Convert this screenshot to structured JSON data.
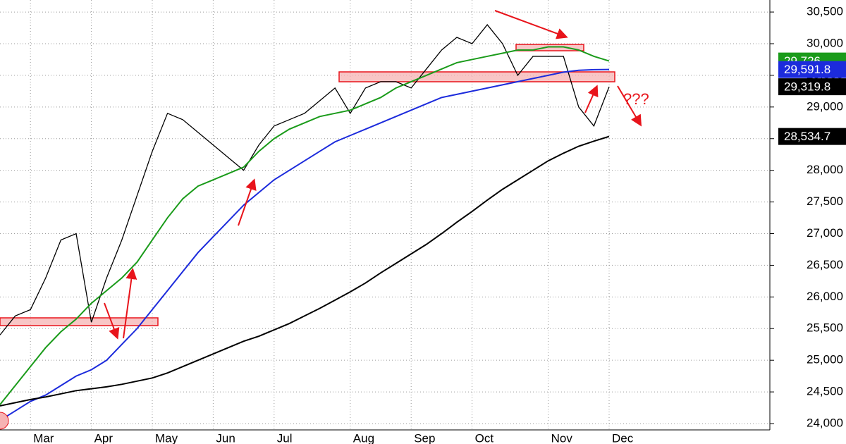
{
  "chart_data": {
    "type": "line",
    "categories": [
      null,
      null,
      "Mar",
      null,
      null,
      null,
      "Apr",
      null,
      null,
      null,
      "May",
      null,
      null,
      null,
      "Jun",
      null,
      null,
      null,
      "Jul",
      null,
      null,
      null,
      null,
      "Aug",
      null,
      null,
      null,
      "Sep",
      null,
      null,
      null,
      "Oct",
      null,
      null,
      null,
      null,
      "Nov",
      null,
      null,
      null,
      "Dec"
    ],
    "series": [
      {
        "color": "#000000",
        "values": [
          25400,
          25700,
          25800,
          26300,
          26900,
          27000,
          25600,
          26300,
          26900,
          27600,
          28300,
          28900,
          28800,
          28600,
          28400,
          28200,
          28000,
          28400,
          28700,
          28800,
          28900,
          29100,
          29300,
          28900,
          29300,
          29400,
          29400,
          29300,
          29600,
          29900,
          30100,
          30000,
          30300,
          30000,
          29500,
          29800,
          29800,
          29800,
          29000,
          28700,
          29319.8
        ],
        "end_label": "29,319.8"
      },
      {
        "color": "#1a9b1a",
        "values": [
          24300,
          24600,
          24900,
          25200,
          25450,
          25650,
          25900,
          26100,
          26300,
          26550,
          26900,
          27250,
          27550,
          27750,
          27850,
          27950,
          28050,
          28300,
          28500,
          28650,
          28750,
          28850,
          28900,
          28950,
          29050,
          29150,
          29300,
          29400,
          29500,
          29600,
          29700,
          29750,
          29800,
          29850,
          29900,
          29900,
          29950,
          29950,
          29900,
          29800,
          29726
        ],
        "end_label": "29,726"
      },
      {
        "color": "#1c2bdc",
        "values": [
          24050,
          24200,
          24350,
          24450,
          24600,
          24750,
          24850,
          25000,
          25250,
          25500,
          25800,
          26100,
          26400,
          26700,
          26950,
          27200,
          27450,
          27650,
          27850,
          28000,
          28150,
          28300,
          28450,
          28550,
          28650,
          28750,
          28850,
          28950,
          29050,
          29150,
          29200,
          29250,
          29300,
          29350,
          29400,
          29450,
          29500,
          29550,
          29580,
          29590,
          29591.8
        ],
        "end_label": "29,591.8"
      },
      {
        "color": "#000000",
        "values": [
          24280,
          24330,
          24380,
          24420,
          24470,
          24520,
          24550,
          24580,
          24620,
          24670,
          24720,
          24800,
          24900,
          25000,
          25100,
          25200,
          25300,
          25380,
          25480,
          25580,
          25700,
          25820,
          25950,
          26080,
          26220,
          26380,
          26530,
          26680,
          26830,
          27000,
          27180,
          27350,
          27530,
          27700,
          27850,
          28000,
          28150,
          28270,
          28380,
          28460,
          28534.7
        ],
        "end_label": "28,534.7"
      }
    ],
    "ylim": [
      23900,
      30690
    ],
    "yticks": [
      {
        "value": 24000,
        "label": "24,000"
      },
      {
        "value": 24500,
        "label": "24,500"
      },
      {
        "value": 25000,
        "label": "25,000"
      },
      {
        "value": 25500,
        "label": "25,500"
      },
      {
        "value": 26000,
        "label": "26,000"
      },
      {
        "value": 26500,
        "label": "26,500"
      },
      {
        "value": 27000,
        "label": "27,000"
      },
      {
        "value": 27500,
        "label": "27,500"
      },
      {
        "value": 28000,
        "label": "28,000"
      },
      {
        "value": 28500,
        "label": "28,500"
      },
      {
        "value": 29000,
        "label": "29,000"
      },
      {
        "value": 29500,
        "label": "29,500"
      },
      {
        "value": 30000,
        "label": "30,000"
      },
      {
        "value": 30500,
        "label": "30,500"
      }
    ],
    "grid": true,
    "annotation": "???"
  }
}
